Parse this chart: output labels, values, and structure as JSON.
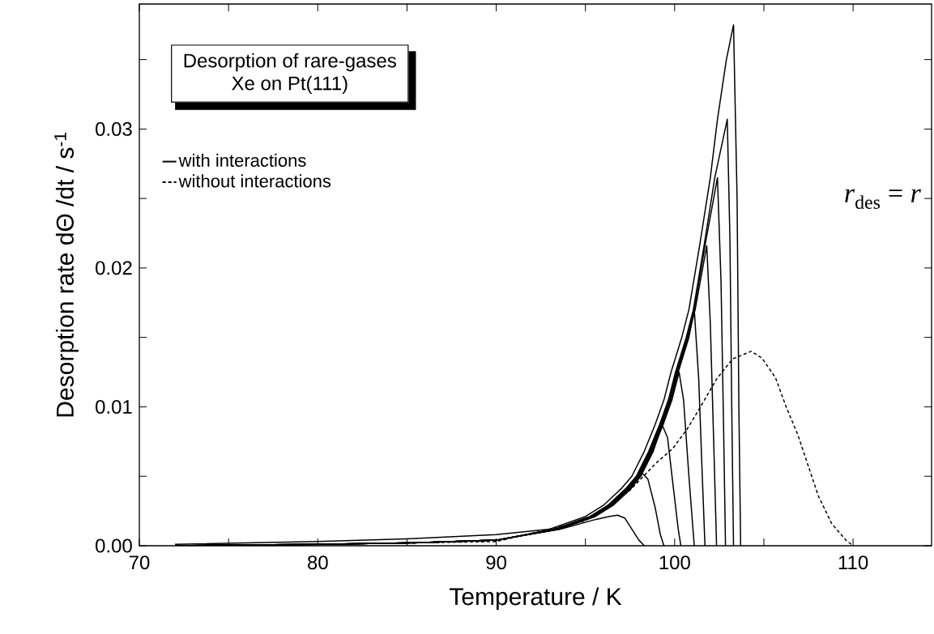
{
  "chart_data": {
    "type": "line",
    "title": "Desorption of rare-gases",
    "subtitle": "Xe on Pt(111)",
    "xlabel": "Temperature / K",
    "ylabel": "Desorption rate dΘ /dt / s$^{-1}$",
    "annotations": [
      "*r*$_{des}$ = *r*"
    ],
    "xlim": [
      70,
      114.4
    ],
    "ylim": [
      0,
      0.039
    ],
    "xticks": [
      70,
      {
        "value": 75,
        "label": null
      },
      80,
      {
        "value": 85,
        "label": null
      },
      90,
      {
        "value": 95,
        "label": null
      },
      100,
      {
        "value": 105,
        "label": null
      },
      110
    ],
    "yticks": [
      {
        "value": 0,
        "label": "0.00"
      },
      {
        "value": 0.005,
        "label": null
      },
      {
        "value": 0.01,
        "label": "0.01"
      },
      {
        "value": 0.015,
        "label": null
      },
      {
        "value": 0.02,
        "label": "0.02"
      },
      {
        "value": 0.025,
        "label": null
      },
      {
        "value": 0.03,
        "label": "0.03"
      },
      {
        "value": 0.035,
        "label": null
      }
    ],
    "legend": "top left",
    "series": [
      {
        "name": "with interactions",
        "color": "#000000",
        "line_style": "solid",
        "x": [
          72,
          80,
          85,
          90,
          93,
          95,
          96,
          97,
          97.6,
          98.3,
          98.9,
          99.4,
          99.8,
          100.4,
          100.8,
          101.4,
          102.0,
          102.4,
          102.9,
          103.3,
          103.5,
          103.6,
          103.7
        ],
        "values": [
          0.0001,
          0.0003,
          0.0005,
          0.0008,
          0.0012,
          0.0021,
          0.0029,
          0.0041,
          0.005,
          0.0068,
          0.0087,
          0.0105,
          0.0125,
          0.015,
          0.017,
          0.0216,
          0.0265,
          0.0307,
          0.035,
          0.0375,
          0.025,
          0.01,
          0
        ]
      },
      {
        "color": "#000000",
        "line_style": "solid",
        "x": [
          72,
          80,
          85,
          90,
          93.6,
          95.6,
          96.3,
          96.8,
          97.2,
          97.6,
          98.0,
          98.3
        ],
        "values": [
          0,
          0.0001,
          0.0002,
          0.0004,
          0.0012,
          0.0019,
          0.0021,
          0.0022,
          0.002,
          0.0012,
          0.0004,
          0
        ]
      },
      {
        "color": "#000000",
        "line_style": "solid",
        "x": [
          72,
          80,
          85,
          90,
          93.55,
          95.55,
          96.55,
          97.55,
          98.2,
          98.5,
          98.9,
          99.2,
          99.4
        ],
        "values": [
          0,
          0.0001,
          0.0002,
          0.0004,
          0.0012,
          0.0021,
          0.0029,
          0.0041,
          0.0052,
          0.0048,
          0.0028,
          0.0008,
          0
        ]
      },
      {
        "color": "#000000",
        "line_style": "solid",
        "x": [
          72,
          80,
          85,
          90,
          93.5,
          95.5,
          96.5,
          97.5,
          98.1,
          98.8,
          99.3,
          99.6,
          99.9,
          100.2,
          100.35
        ],
        "values": [
          0,
          0.0001,
          0.0002,
          0.0004,
          0.0012,
          0.0021,
          0.0029,
          0.0041,
          0.005,
          0.0068,
          0.0087,
          0.0078,
          0.0045,
          0.0012,
          0
        ]
      },
      {
        "color": "#000000",
        "line_style": "solid",
        "x": [
          72,
          80,
          85,
          90,
          93.45,
          95.45,
          96.45,
          97.45,
          98.05,
          98.75,
          99.35,
          99.85,
          100.25,
          100.5,
          100.8,
          101.1
        ],
        "values": [
          0,
          0.0001,
          0.0002,
          0.0004,
          0.0012,
          0.0021,
          0.0029,
          0.0041,
          0.005,
          0.0068,
          0.0087,
          0.0105,
          0.0125,
          0.0105,
          0.005,
          0
        ]
      },
      {
        "color": "#000000",
        "line_style": "solid",
        "x": [
          72,
          80,
          85,
          90,
          93.4,
          95.4,
          96.4,
          97.4,
          98.0,
          98.7,
          99.3,
          99.8,
          100.2,
          100.8,
          101.1,
          101.35,
          101.55,
          101.7
        ],
        "values": [
          0,
          0.0001,
          0.0002,
          0.0004,
          0.0012,
          0.0021,
          0.0029,
          0.0041,
          0.005,
          0.0068,
          0.0087,
          0.0105,
          0.0125,
          0.015,
          0.017,
          0.012,
          0.005,
          0
        ]
      },
      {
        "color": "#000000",
        "line_style": "solid",
        "x": [
          72,
          80,
          85,
          90,
          93.35,
          95.35,
          96.35,
          97.35,
          97.95,
          98.65,
          99.25,
          99.75,
          100.15,
          100.75,
          101.15,
          101.8,
          102.0,
          102.2,
          102.35
        ],
        "values": [
          0,
          0.0001,
          0.0002,
          0.0004,
          0.0012,
          0.0021,
          0.0029,
          0.0041,
          0.005,
          0.0068,
          0.0087,
          0.0105,
          0.0125,
          0.015,
          0.017,
          0.0216,
          0.016,
          0.007,
          0
        ]
      },
      {
        "color": "#000000",
        "line_style": "solid",
        "x": [
          72,
          80,
          85,
          90,
          93.3,
          95.3,
          96.3,
          97.3,
          97.9,
          98.6,
          99.2,
          99.7,
          100.1,
          100.7,
          101.1,
          101.7,
          102.4,
          102.6,
          102.75,
          102.85
        ],
        "values": [
          0,
          0.0001,
          0.0002,
          0.0004,
          0.0012,
          0.0021,
          0.0029,
          0.0041,
          0.005,
          0.0068,
          0.0087,
          0.0105,
          0.0125,
          0.015,
          0.017,
          0.0216,
          0.0265,
          0.019,
          0.008,
          0
        ]
      },
      {
        "color": "#000000",
        "line_style": "solid",
        "x": [
          72,
          80,
          85,
          90,
          93.25,
          95.25,
          96.25,
          97.25,
          97.85,
          98.55,
          99.15,
          99.65,
          100.05,
          100.65,
          101.05,
          101.65,
          102.25,
          102.95,
          103.1,
          103.2,
          103.3
        ],
        "values": [
          0,
          0.0001,
          0.0002,
          0.0004,
          0.0012,
          0.0021,
          0.0029,
          0.0041,
          0.005,
          0.0068,
          0.0087,
          0.0105,
          0.0125,
          0.015,
          0.017,
          0.0216,
          0.0265,
          0.0307,
          0.022,
          0.01,
          0
        ]
      },
      {
        "name": "without interactions",
        "color": "#000000",
        "line_style": "dashed",
        "x": [
          72,
          80,
          85,
          90,
          95,
          97.5,
          99,
          99.9,
          100.7,
          101.45,
          102.35,
          103.25,
          104.3,
          104.9,
          105.65,
          106.25,
          106.9,
          107.5,
          108.05,
          108.8,
          109.6,
          110
        ],
        "values": [
          0,
          0.0001,
          0.0002,
          0.0003,
          0.0018,
          0.004,
          0.006,
          0.007,
          0.0084,
          0.01,
          0.012,
          0.01345,
          0.014,
          0.0135,
          0.0121,
          0.01,
          0.008,
          0.0057,
          0.0036,
          0.0016,
          0.0004,
          0
        ]
      }
    ]
  }
}
